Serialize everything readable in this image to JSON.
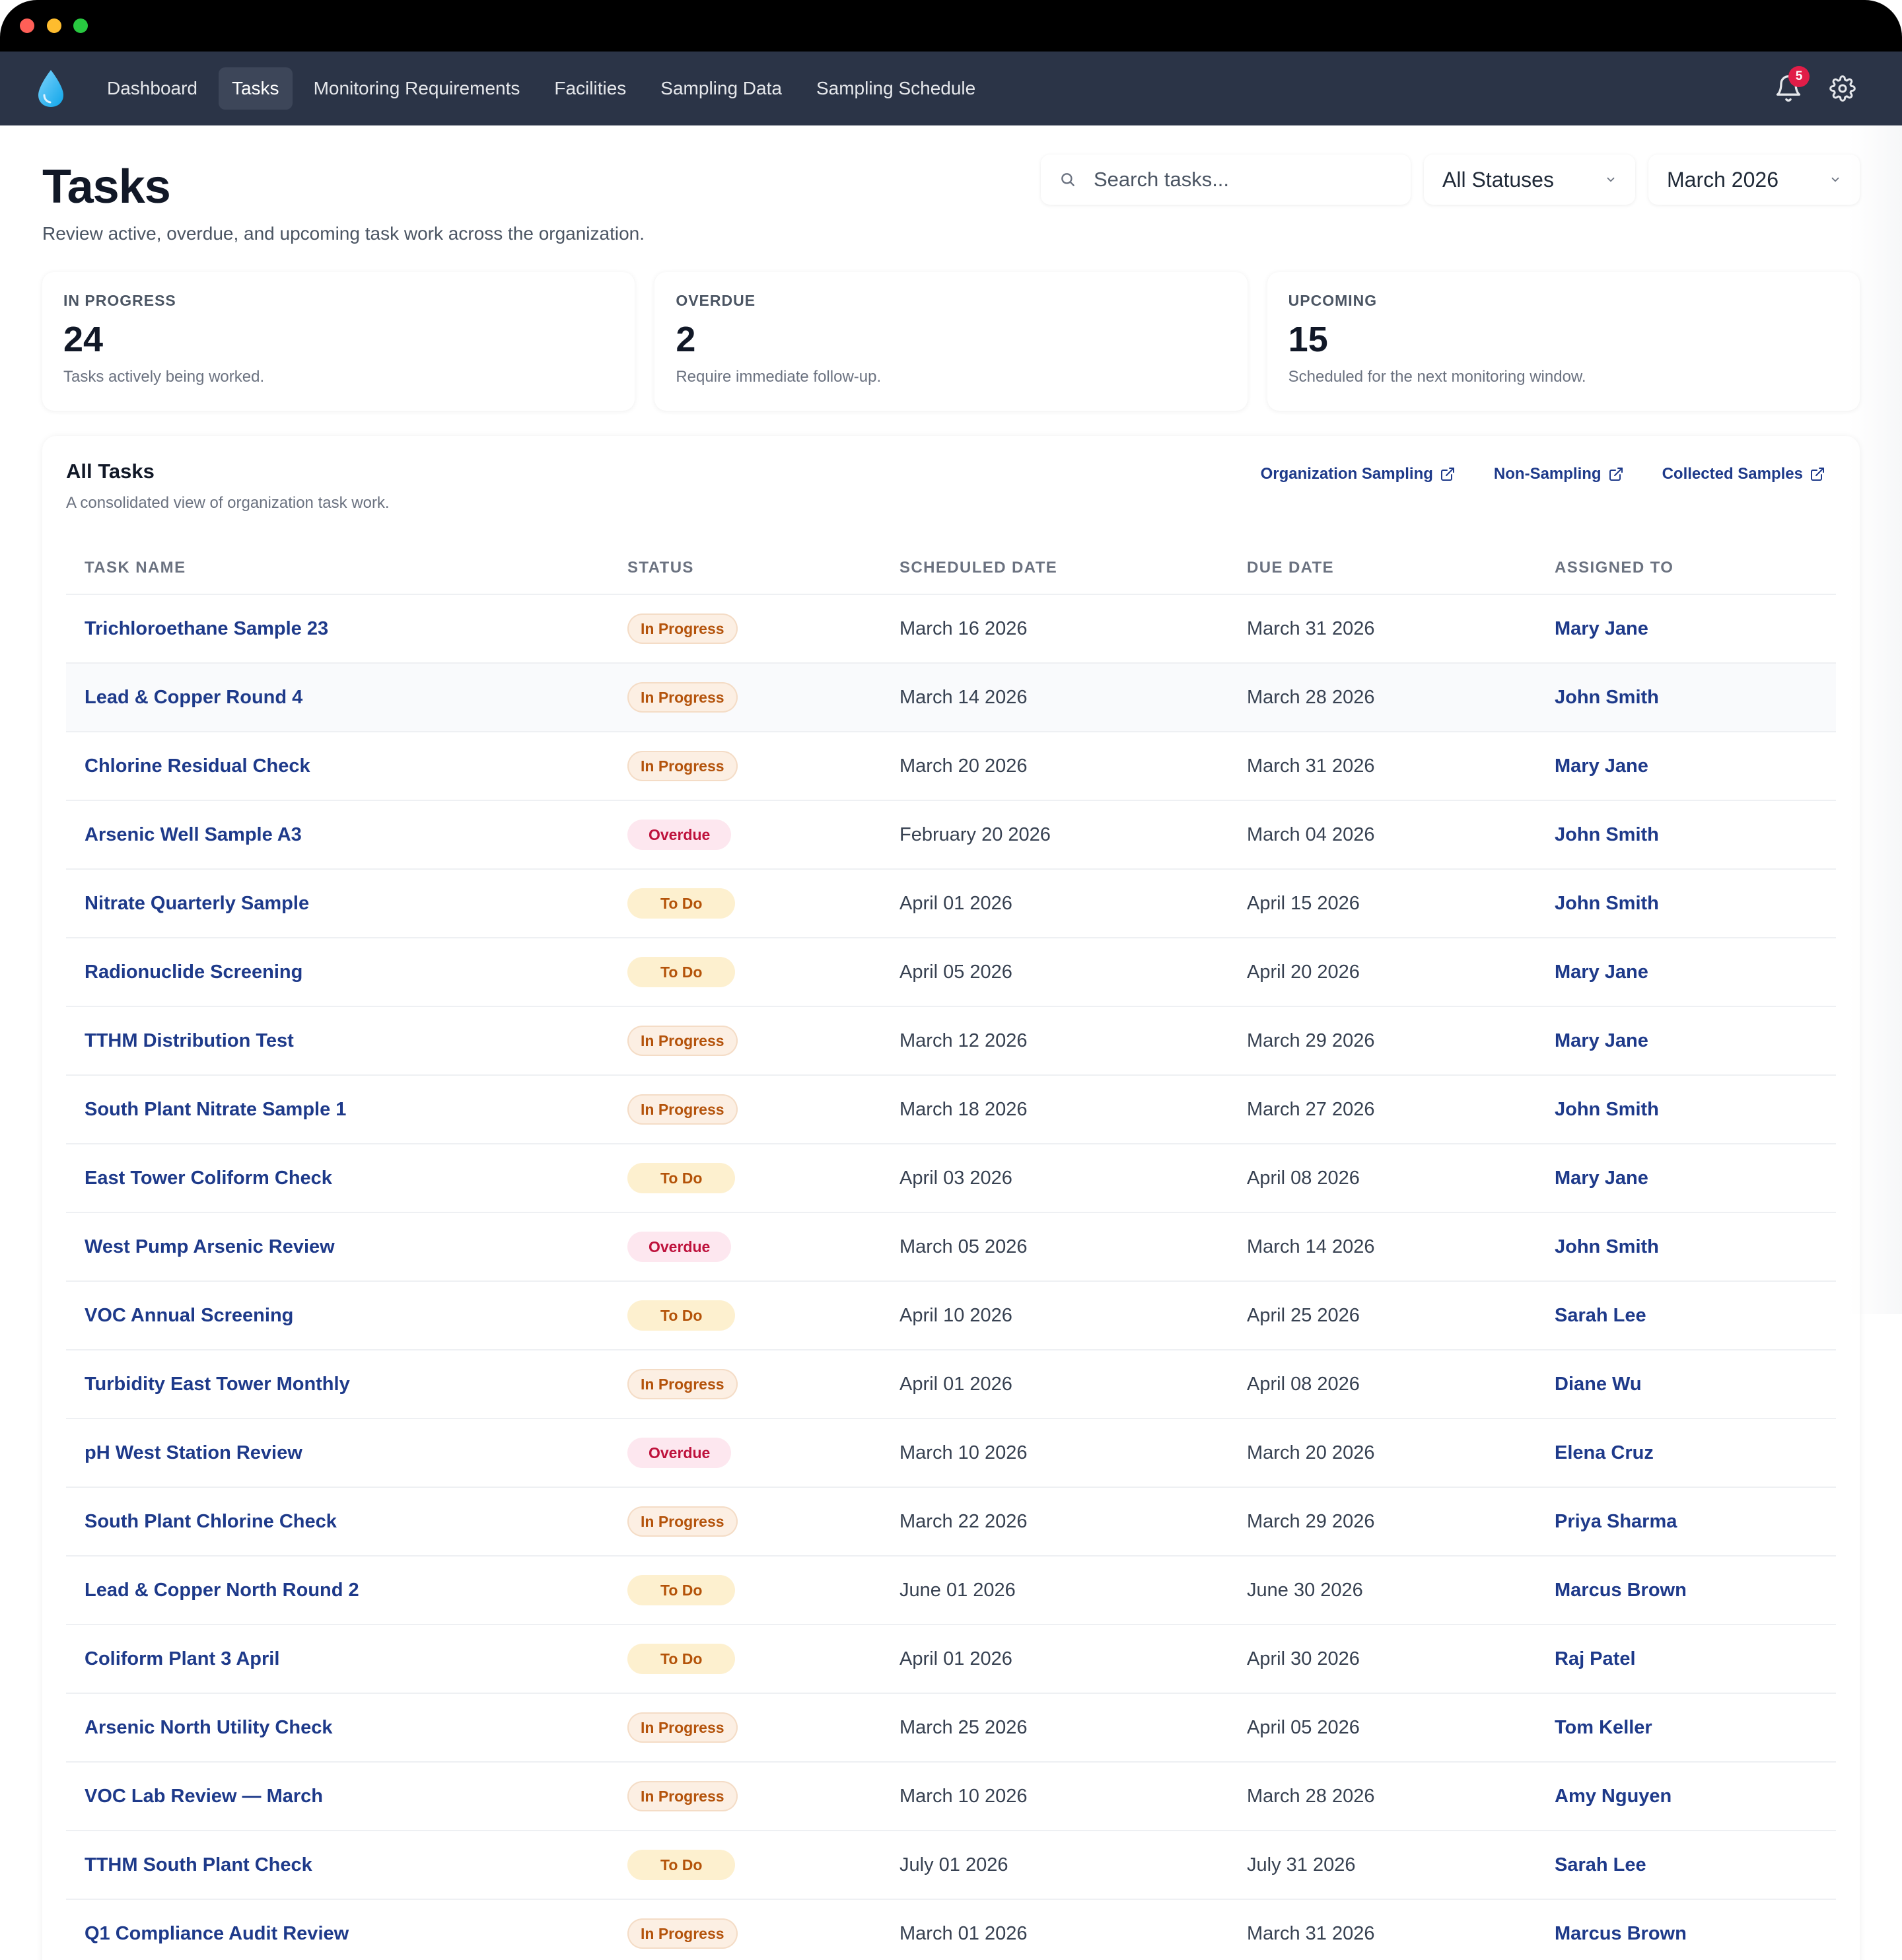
{
  "nav": {
    "items": [
      {
        "label": "Dashboard",
        "active": false
      },
      {
        "label": "Tasks",
        "active": true
      },
      {
        "label": "Monitoring Requirements",
        "active": false
      },
      {
        "label": "Facilities",
        "active": false
      },
      {
        "label": "Sampling Data",
        "active": false
      },
      {
        "label": "Sampling Schedule",
        "active": false
      }
    ],
    "notification_count": "5",
    "logo_icon": "water-drop-icon"
  },
  "page": {
    "title": "Tasks",
    "subtitle": "Review active, overdue, and upcoming task work across the organization."
  },
  "filters": {
    "search_placeholder": "Search tasks...",
    "status_value": "All Statuses",
    "month_value": "March 2026"
  },
  "stats": [
    {
      "label": "IN PROGRESS",
      "value": "24",
      "desc": "Tasks actively being worked."
    },
    {
      "label": "OVERDUE",
      "value": "2",
      "desc": "Require immediate follow-up."
    },
    {
      "label": "UPCOMING",
      "value": "15",
      "desc": "Scheduled for the next monitoring window."
    }
  ],
  "table": {
    "title": "All Tasks",
    "subtitle": "A consolidated view of organization task work.",
    "links": [
      "Organization Sampling",
      "Non-Sampling",
      "Collected Samples"
    ],
    "columns": [
      "TASK NAME",
      "STATUS",
      "SCHEDULED DATE",
      "DUE DATE",
      "ASSIGNED TO"
    ],
    "rows": [
      {
        "name": "Trichloroethane Sample 23",
        "status": "In Progress",
        "status_type": "progress",
        "scheduled": "March 16 2026",
        "due": "March 31 2026",
        "assigned": "Mary Jane"
      },
      {
        "name": "Lead & Copper Round 4",
        "status": "In Progress",
        "status_type": "progress",
        "scheduled": "March 14 2026",
        "due": "March 28 2026",
        "assigned": "John Smith"
      },
      {
        "name": "Chlorine Residual Check",
        "status": "In Progress",
        "status_type": "progress",
        "scheduled": "March 20 2026",
        "due": "March 31 2026",
        "assigned": "Mary Jane"
      },
      {
        "name": "Arsenic Well Sample A3",
        "status": "Overdue",
        "status_type": "overdue",
        "scheduled": "February 20 2026",
        "due": "March 04 2026",
        "assigned": "John Smith"
      },
      {
        "name": "Nitrate Quarterly Sample",
        "status": "To Do",
        "status_type": "todo",
        "scheduled": "April 01 2026",
        "due": "April 15 2026",
        "assigned": "John Smith"
      },
      {
        "name": "Radionuclide Screening",
        "status": "To Do",
        "status_type": "todo",
        "scheduled": "April 05 2026",
        "due": "April 20 2026",
        "assigned": "Mary Jane"
      },
      {
        "name": "TTHM Distribution Test",
        "status": "In Progress",
        "status_type": "progress",
        "scheduled": "March 12 2026",
        "due": "March 29 2026",
        "assigned": "Mary Jane"
      },
      {
        "name": "South Plant Nitrate Sample 1",
        "status": "In Progress",
        "status_type": "progress",
        "scheduled": "March 18 2026",
        "due": "March 27 2026",
        "assigned": "John Smith"
      },
      {
        "name": "East Tower Coliform Check",
        "status": "To Do",
        "status_type": "todo",
        "scheduled": "April 03 2026",
        "due": "April 08 2026",
        "assigned": "Mary Jane"
      },
      {
        "name": "West Pump Arsenic Review",
        "status": "Overdue",
        "status_type": "overdue",
        "scheduled": "March 05 2026",
        "due": "March 14 2026",
        "assigned": "John Smith"
      },
      {
        "name": "VOC Annual Screening",
        "status": "To Do",
        "status_type": "todo",
        "scheduled": "April 10 2026",
        "due": "April 25 2026",
        "assigned": "Sarah Lee"
      },
      {
        "name": "Turbidity East Tower Monthly",
        "status": "In Progress",
        "status_type": "progress",
        "scheduled": "April 01 2026",
        "due": "April 08 2026",
        "assigned": "Diane Wu"
      },
      {
        "name": "pH West Station Review",
        "status": "Overdue",
        "status_type": "overdue",
        "scheduled": "March 10 2026",
        "due": "March 20 2026",
        "assigned": "Elena Cruz"
      },
      {
        "name": "South Plant Chlorine Check",
        "status": "In Progress",
        "status_type": "progress",
        "scheduled": "March 22 2026",
        "due": "March 29 2026",
        "assigned": "Priya Sharma"
      },
      {
        "name": "Lead & Copper North Round 2",
        "status": "To Do",
        "status_type": "todo",
        "scheduled": "June 01 2026",
        "due": "June 30 2026",
        "assigned": "Marcus Brown"
      },
      {
        "name": "Coliform Plant 3 April",
        "status": "To Do",
        "status_type": "todo",
        "scheduled": "April 01 2026",
        "due": "April 30 2026",
        "assigned": "Raj Patel"
      },
      {
        "name": "Arsenic North Utility Check",
        "status": "In Progress",
        "status_type": "progress",
        "scheduled": "March 25 2026",
        "due": "April 05 2026",
        "assigned": "Tom Keller"
      },
      {
        "name": "VOC Lab Review — March",
        "status": "In Progress",
        "status_type": "progress",
        "scheduled": "March 10 2026",
        "due": "March 28 2026",
        "assigned": "Amy Nguyen"
      },
      {
        "name": "TTHM South Plant Check",
        "status": "To Do",
        "status_type": "todo",
        "scheduled": "July 01 2026",
        "due": "July 31 2026",
        "assigned": "Sarah Lee"
      },
      {
        "name": "Q1 Compliance Audit Review",
        "status": "In Progress",
        "status_type": "progress",
        "scheduled": "March 01 2026",
        "due": "March 31 2026",
        "assigned": "Marcus Brown"
      }
    ]
  },
  "colors": {
    "navbar": "#2b3447",
    "link": "#1e3a8a",
    "in_progress": "#b4530b",
    "overdue": "#be123c",
    "todo": "#b45309",
    "accent_drop": "#38bdf8"
  }
}
